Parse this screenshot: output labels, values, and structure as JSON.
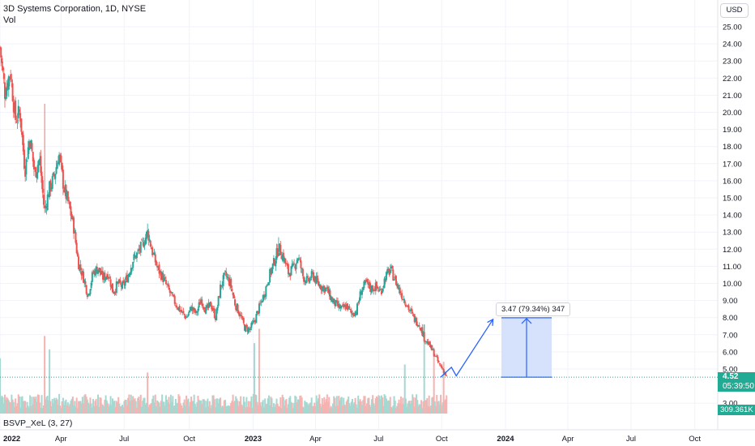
{
  "header": {
    "symbol_line": "3D Systems Corporation, 1D, NYSE",
    "volume_label": "Vol"
  },
  "currency_button": "USD",
  "indicator_label": "BSVP_XeL (3, 27)",
  "price_scale": {
    "ticks": [
      "25.00",
      "24.00",
      "23.00",
      "22.00",
      "21.00",
      "20.00",
      "19.00",
      "18.00",
      "17.00",
      "16.00",
      "15.00",
      "14.00",
      "13.00",
      "12.00",
      "11.00",
      "10.00",
      "9.00",
      "8.00",
      "7.00",
      "6.00",
      "5.00",
      "3.00"
    ]
  },
  "time_axis": {
    "labels": [
      "2022",
      "Apr",
      "Jul",
      "Oct",
      "2023",
      "Apr",
      "Jul",
      "Oct",
      "2024",
      "Apr",
      "Jul",
      "Oct"
    ]
  },
  "last_price": {
    "price": "4.52",
    "countdown": "05:39:50"
  },
  "last_volume": "309.361K",
  "measure_tool": {
    "label": "3.47 (79.34%) 347",
    "from_price": 4.52,
    "to_price": 7.99
  },
  "colors": {
    "up": "#26a69a",
    "down": "#ef5350",
    "vol_up": "#a6d8d2",
    "vol_down": "#f5b3b1",
    "projection": "#2962ff",
    "measure_fill": "#d6e2fb",
    "badge": "#22ab94"
  },
  "chart_data": {
    "type": "candlestick",
    "title": "3D Systems Corporation, 1D, NYSE",
    "ylim": [
      2.4,
      25.8
    ],
    "close_path": [
      {
        "x": "2022-01-03",
        "y": 23.8
      },
      {
        "x": "2022-01-10",
        "y": 21.2
      },
      {
        "x": "2022-01-18",
        "y": 22.4
      },
      {
        "x": "2022-01-25",
        "y": 19.6
      },
      {
        "x": "2022-02-01",
        "y": 20.0
      },
      {
        "x": "2022-02-08",
        "y": 16.6
      },
      {
        "x": "2022-02-15",
        "y": 18.6
      },
      {
        "x": "2022-02-22",
        "y": 16.4
      },
      {
        "x": "2022-03-01",
        "y": 17.3
      },
      {
        "x": "2022-03-08",
        "y": 14.2
      },
      {
        "x": "2022-03-15",
        "y": 15.5
      },
      {
        "x": "2022-03-22",
        "y": 16.2
      },
      {
        "x": "2022-03-29",
        "y": 17.6
      },
      {
        "x": "2022-04-05",
        "y": 15.6
      },
      {
        "x": "2022-04-12",
        "y": 14.6
      },
      {
        "x": "2022-04-19",
        "y": 13.4
      },
      {
        "x": "2022-04-26",
        "y": 11.2
      },
      {
        "x": "2022-05-03",
        "y": 10.4
      },
      {
        "x": "2022-05-10",
        "y": 9.3
      },
      {
        "x": "2022-05-17",
        "y": 10.6
      },
      {
        "x": "2022-05-24",
        "y": 10.9
      },
      {
        "x": "2022-06-01",
        "y": 10.3
      },
      {
        "x": "2022-06-08",
        "y": 10.6
      },
      {
        "x": "2022-06-15",
        "y": 9.5
      },
      {
        "x": "2022-06-22",
        "y": 10.0
      },
      {
        "x": "2022-06-29",
        "y": 9.8
      },
      {
        "x": "2022-07-07",
        "y": 10.5
      },
      {
        "x": "2022-07-14",
        "y": 11.4
      },
      {
        "x": "2022-07-21",
        "y": 11.8
      },
      {
        "x": "2022-07-28",
        "y": 12.3
      },
      {
        "x": "2022-08-04",
        "y": 13.0
      },
      {
        "x": "2022-08-11",
        "y": 11.8
      },
      {
        "x": "2022-08-18",
        "y": 10.9
      },
      {
        "x": "2022-08-25",
        "y": 10.4
      },
      {
        "x": "2022-09-01",
        "y": 9.8
      },
      {
        "x": "2022-09-08",
        "y": 9.2
      },
      {
        "x": "2022-09-15",
        "y": 8.7
      },
      {
        "x": "2022-09-22",
        "y": 8.3
      },
      {
        "x": "2022-09-29",
        "y": 8.0
      },
      {
        "x": "2022-10-06",
        "y": 8.6
      },
      {
        "x": "2022-10-13",
        "y": 8.2
      },
      {
        "x": "2022-10-20",
        "y": 9.1
      },
      {
        "x": "2022-10-27",
        "y": 8.4
      },
      {
        "x": "2022-11-03",
        "y": 8.8
      },
      {
        "x": "2022-11-10",
        "y": 8.0
      },
      {
        "x": "2022-11-17",
        "y": 9.8
      },
      {
        "x": "2022-11-24",
        "y": 10.5
      },
      {
        "x": "2022-12-01",
        "y": 10.0
      },
      {
        "x": "2022-12-08",
        "y": 8.8
      },
      {
        "x": "2022-12-15",
        "y": 8.2
      },
      {
        "x": "2022-12-22",
        "y": 7.4
      },
      {
        "x": "2022-12-29",
        "y": 7.3
      },
      {
        "x": "2023-01-05",
        "y": 7.8
      },
      {
        "x": "2023-01-12",
        "y": 8.6
      },
      {
        "x": "2023-01-19",
        "y": 9.4
      },
      {
        "x": "2023-01-26",
        "y": 10.4
      },
      {
        "x": "2023-02-02",
        "y": 11.2
      },
      {
        "x": "2023-02-09",
        "y": 12.1
      },
      {
        "x": "2023-02-16",
        "y": 11.5
      },
      {
        "x": "2023-02-23",
        "y": 10.6
      },
      {
        "x": "2023-03-02",
        "y": 10.9
      },
      {
        "x": "2023-03-09",
        "y": 11.6
      },
      {
        "x": "2023-03-16",
        "y": 10.4
      },
      {
        "x": "2023-03-23",
        "y": 10.1
      },
      {
        "x": "2023-03-30",
        "y": 10.5
      },
      {
        "x": "2023-04-06",
        "y": 10.0
      },
      {
        "x": "2023-04-13",
        "y": 9.8
      },
      {
        "x": "2023-04-20",
        "y": 9.6
      },
      {
        "x": "2023-04-27",
        "y": 9.0
      },
      {
        "x": "2023-05-04",
        "y": 8.7
      },
      {
        "x": "2023-05-11",
        "y": 8.5
      },
      {
        "x": "2023-05-18",
        "y": 8.7
      },
      {
        "x": "2023-05-25",
        "y": 8.2
      },
      {
        "x": "2023-06-01",
        "y": 8.4
      },
      {
        "x": "2023-06-08",
        "y": 9.6
      },
      {
        "x": "2023-06-15",
        "y": 10.0
      },
      {
        "x": "2023-06-22",
        "y": 9.7
      },
      {
        "x": "2023-06-29",
        "y": 9.8
      },
      {
        "x": "2023-07-06",
        "y": 9.5
      },
      {
        "x": "2023-07-13",
        "y": 10.4
      },
      {
        "x": "2023-07-20",
        "y": 10.8
      },
      {
        "x": "2023-07-27",
        "y": 10.2
      },
      {
        "x": "2023-08-03",
        "y": 9.5
      },
      {
        "x": "2023-08-10",
        "y": 9.0
      },
      {
        "x": "2023-08-17",
        "y": 8.4
      },
      {
        "x": "2023-08-24",
        "y": 7.9
      },
      {
        "x": "2023-08-31",
        "y": 7.6
      },
      {
        "x": "2023-09-07",
        "y": 6.8
      },
      {
        "x": "2023-09-14",
        "y": 6.4
      },
      {
        "x": "2023-09-21",
        "y": 5.9
      },
      {
        "x": "2023-09-28",
        "y": 5.3
      },
      {
        "x": "2023-10-05",
        "y": 4.9
      },
      {
        "x": "2023-10-09",
        "y": 4.52
      }
    ],
    "spikes": [
      {
        "x": "2022-03-08",
        "y": 20.5
      },
      {
        "x": "2022-08-04",
        "y": 13.5
      },
      {
        "x": "2023-02-09",
        "y": 12.7
      },
      {
        "x": "2023-07-20",
        "y": 11.1
      },
      {
        "x": "2023-09-07",
        "y": 7.6
      }
    ],
    "projection": [
      {
        "x": "2023-10-09",
        "y": 4.52
      },
      {
        "x": "2023-10-16",
        "y": 5.1
      },
      {
        "x": "2023-10-23",
        "y": 4.6
      },
      {
        "x": "2023-12-15",
        "y": 7.9
      }
    ],
    "volume": {
      "baseline_bars": 240,
      "spikes": [
        {
          "x": "2022-01-03",
          "rel": 0.62
        },
        {
          "x": "2022-03-08",
          "rel": 0.87
        },
        {
          "x": "2022-03-15",
          "rel": 0.72
        },
        {
          "x": "2022-08-04",
          "rel": 0.46
        },
        {
          "x": "2023-01-05",
          "rel": 0.79
        },
        {
          "x": "2023-01-12",
          "rel": 0.95
        },
        {
          "x": "2023-08-10",
          "rel": 0.55
        },
        {
          "x": "2023-09-07",
          "rel": 1.0
        },
        {
          "x": "2023-09-21",
          "rel": 0.64
        },
        {
          "x": "2023-10-05",
          "rel": 0.58
        }
      ]
    }
  }
}
